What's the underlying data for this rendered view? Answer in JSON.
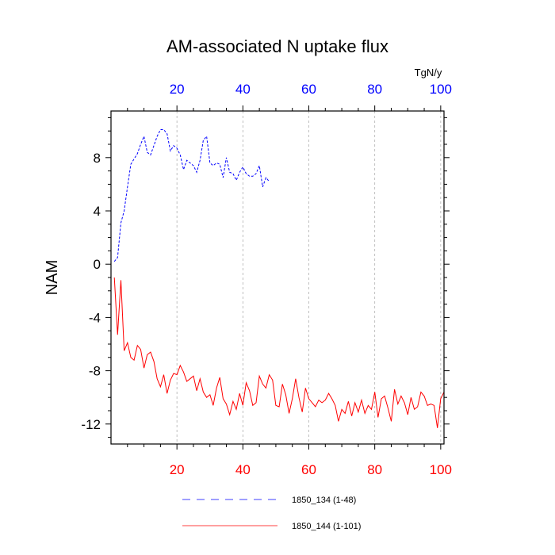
{
  "chart_data": {
    "type": "line",
    "title": "AM-associated N uptake flux",
    "ylabel": "NAM",
    "top_axis_unit": "TgN/y",
    "xlim": [
      0,
      101
    ],
    "ylim": [
      -13.5,
      11.5
    ],
    "grid": "vertical dashed at x ticks",
    "x_ticks": [
      "20",
      "40",
      "60",
      "80",
      "100"
    ],
    "y_ticks": [
      "8",
      "4",
      "0",
      "-4",
      "-8",
      "-12"
    ],
    "top_axis_color": "#0000ff",
    "bottom_axis_color": "#ff0000",
    "series": [
      {
        "name": "1850_134 (1-48)",
        "color": "#0000ff",
        "style": "dashed",
        "x": [
          1,
          2,
          3,
          4,
          5,
          6,
          7,
          8,
          9,
          10,
          11,
          12,
          13,
          14,
          15,
          16,
          17,
          18,
          19,
          20,
          21,
          22,
          23,
          24,
          25,
          26,
          27,
          28,
          29,
          30,
          31,
          32,
          33,
          34,
          35,
          36,
          37,
          38,
          39,
          40,
          41,
          42,
          43,
          44,
          45,
          46,
          47,
          48
        ],
        "values": [
          0.2,
          0.5,
          3.1,
          4.0,
          5.8,
          7.5,
          7.9,
          8.3,
          9.0,
          9.6,
          8.4,
          8.2,
          8.9,
          9.6,
          10.1,
          10.1,
          9.8,
          8.5,
          8.9,
          8.7,
          8.2,
          7.1,
          7.8,
          7.6,
          7.4,
          6.9,
          7.8,
          9.3,
          9.6,
          7.6,
          7.4,
          7.6,
          7.5,
          6.5,
          8.0,
          6.9,
          6.8,
          6.3,
          6.9,
          7.3,
          6.8,
          6.6,
          6.6,
          6.8,
          7.4,
          5.8,
          6.5,
          6.2
        ]
      },
      {
        "name": "1850_144 (1-101)",
        "color": "#ff0000",
        "style": "solid",
        "x": [
          1,
          2,
          3,
          4,
          5,
          6,
          7,
          8,
          9,
          10,
          11,
          12,
          13,
          14,
          15,
          16,
          17,
          18,
          19,
          20,
          21,
          22,
          23,
          24,
          25,
          26,
          27,
          28,
          29,
          30,
          31,
          32,
          33,
          34,
          35,
          36,
          37,
          38,
          39,
          40,
          41,
          42,
          43,
          44,
          45,
          46,
          47,
          48,
          49,
          50,
          51,
          52,
          53,
          54,
          55,
          56,
          57,
          58,
          59,
          60,
          61,
          62,
          63,
          64,
          65,
          66,
          67,
          68,
          69,
          70,
          71,
          72,
          73,
          74,
          75,
          76,
          77,
          78,
          79,
          80,
          81,
          82,
          83,
          84,
          85,
          86,
          87,
          88,
          89,
          90,
          91,
          92,
          93,
          94,
          95,
          96,
          97,
          98,
          99,
          100,
          101
        ],
        "values": [
          -1.0,
          -5.3,
          -1.2,
          -6.5,
          -5.9,
          -7.0,
          -7.2,
          -6.1,
          -6.4,
          -7.8,
          -6.8,
          -6.6,
          -7.3,
          -8.6,
          -9.2,
          -8.3,
          -9.7,
          -8.7,
          -8.2,
          -8.3,
          -7.6,
          -8.1,
          -8.8,
          -8.6,
          -8.4,
          -9.5,
          -8.6,
          -9.6,
          -10.0,
          -9.8,
          -10.6,
          -9.3,
          -8.5,
          -10.1,
          -10.5,
          -11.3,
          -10.3,
          -10.9,
          -9.7,
          -10.6,
          -8.9,
          -9.5,
          -10.6,
          -10.4,
          -8.4,
          -9.0,
          -9.3,
          -8.3,
          -8.7,
          -10.6,
          -10.7,
          -9.0,
          -9.8,
          -11.2,
          -10.1,
          -8.6,
          -10.0,
          -11.1,
          -9.3,
          -10.1,
          -10.4,
          -10.7,
          -10.2,
          -10.4,
          -10.2,
          -9.7,
          -10.1,
          -10.6,
          -11.8,
          -10.9,
          -11.2,
          -10.3,
          -11.4,
          -10.4,
          -11.1,
          -10.2,
          -11.2,
          -10.6,
          -10.9,
          -9.6,
          -11.5,
          -10.1,
          -9.9,
          -10.8,
          -11.8,
          -9.4,
          -10.5,
          -9.9,
          -10.4,
          -11.3,
          -10.0,
          -10.9,
          -10.7,
          -9.6,
          -9.9,
          -10.6,
          -10.5,
          -10.6,
          -12.3,
          -10.1,
          -9.6
        ]
      }
    ]
  }
}
